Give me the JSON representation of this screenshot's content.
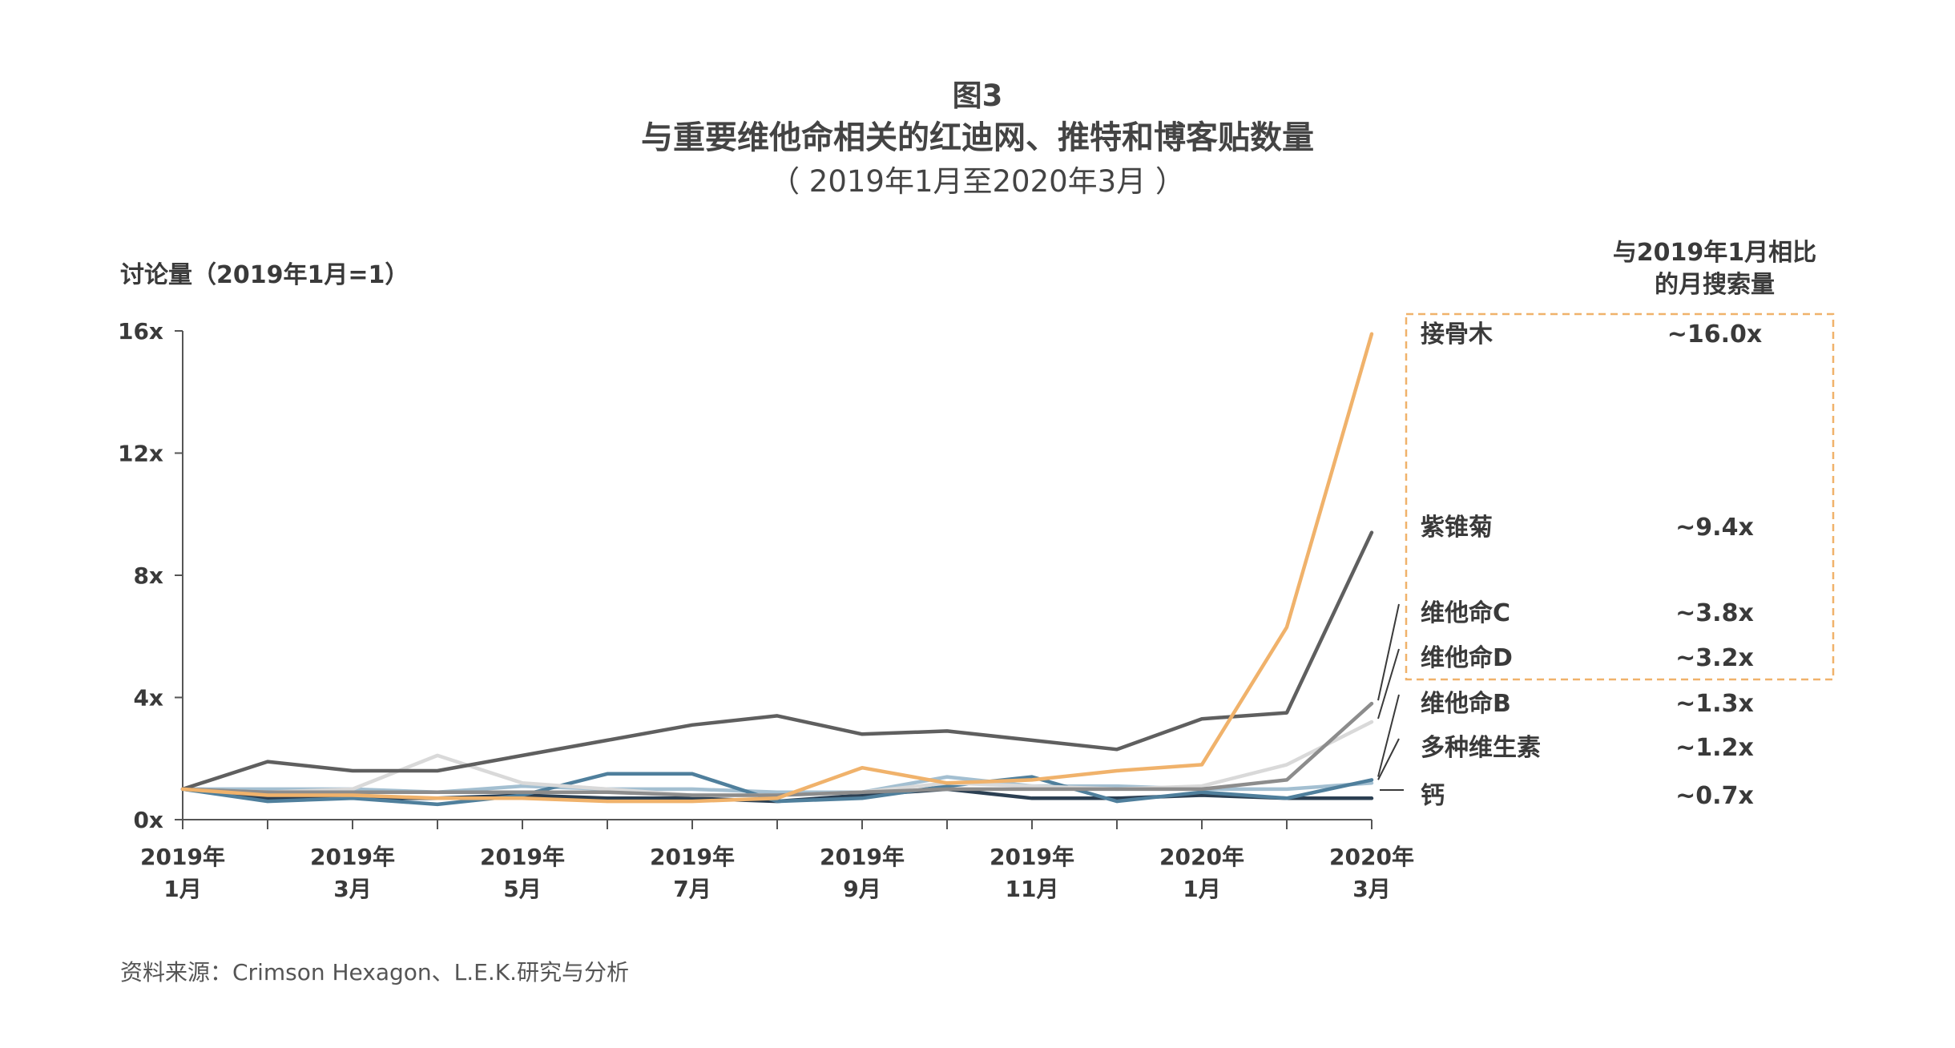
{
  "figure": {
    "label": "图3",
    "title": "与重要维他命相关的红迪网、推特和博客贴数量",
    "subtitle": "（ 2019年1月至2020年3月 ）"
  },
  "side_header": [
    "与2019年1月相比",
    "的月搜索量"
  ],
  "source_note": "资料来源：Crimson Hexagon、L.E.K.研究与分析",
  "colors": {
    "axis": "#555555",
    "highlight_box": "#f0b26b"
  },
  "chart_data": {
    "type": "line",
    "ylabel": "讨论量（2019年1月=1）",
    "ylim": [
      0,
      16
    ],
    "yticks": [
      0,
      4,
      8,
      12,
      16
    ],
    "ytick_labels": [
      "0x",
      "4x",
      "8x",
      "12x",
      "16x"
    ],
    "x_months": 15,
    "x_tick_index": [
      0,
      2,
      4,
      6,
      8,
      10,
      12,
      14
    ],
    "x_tick_labels": [
      [
        "2019年",
        "1月"
      ],
      [
        "2019年",
        "3月"
      ],
      [
        "2019年",
        "5月"
      ],
      [
        "2019年",
        "7月"
      ],
      [
        "2019年",
        "9月"
      ],
      [
        "2019年",
        "11月"
      ],
      [
        "2020年",
        "1月"
      ],
      [
        "2020年",
        "3月"
      ]
    ],
    "grid": false,
    "legend_position": "right",
    "highlight_box_series": [
      0,
      1,
      2,
      3
    ],
    "series": [
      {
        "name": "接骨木",
        "label": "~16.0x",
        "color": "#f0b26b",
        "values": [
          1.0,
          0.8,
          0.8,
          0.7,
          0.7,
          0.6,
          0.6,
          0.7,
          1.7,
          1.2,
          1.3,
          1.6,
          1.8,
          6.3,
          15.9
        ]
      },
      {
        "name": "紫锥菊",
        "label": "~9.4x",
        "color": "#5f5f5f",
        "values": [
          1.0,
          1.9,
          1.6,
          1.6,
          2.1,
          2.6,
          3.1,
          3.4,
          2.8,
          2.9,
          2.6,
          2.3,
          3.3,
          3.5,
          9.4
        ]
      },
      {
        "name": "维他命C",
        "label": "~3.8x",
        "color": "#8c8c8c",
        "values": [
          1.0,
          0.9,
          0.9,
          0.9,
          0.9,
          0.9,
          0.8,
          0.8,
          0.9,
          1.0,
          1.0,
          1.0,
          1.0,
          1.3,
          3.8
        ]
      },
      {
        "name": "维他命D",
        "label": "~3.2x",
        "color": "#d9d9d9",
        "values": [
          1.0,
          0.9,
          1.0,
          2.1,
          1.2,
          1.0,
          0.8,
          0.8,
          0.9,
          1.2,
          1.1,
          1.0,
          1.1,
          1.8,
          3.2
        ]
      },
      {
        "name": "维他命B",
        "label": "~1.3x",
        "color": "#4f7f9c",
        "values": [
          1.0,
          0.6,
          0.7,
          0.5,
          0.8,
          1.5,
          1.5,
          0.6,
          0.7,
          1.1,
          1.4,
          0.6,
          0.9,
          0.7,
          1.3
        ]
      },
      {
        "name": "多种维生素",
        "label": "~1.2x",
        "color": "#a3bfd1",
        "values": [
          1.0,
          1.0,
          1.0,
          0.9,
          1.1,
          1.0,
          1.0,
          0.9,
          0.9,
          1.4,
          1.1,
          1.1,
          1.0,
          1.0,
          1.2
        ]
      },
      {
        "name": "钙",
        "label": "~0.7x",
        "color": "#2b3f52",
        "values": [
          1.0,
          0.7,
          0.7,
          0.7,
          0.8,
          0.7,
          0.7,
          0.6,
          0.8,
          1.0,
          0.7,
          0.7,
          0.8,
          0.7,
          0.7
        ]
      }
    ]
  }
}
